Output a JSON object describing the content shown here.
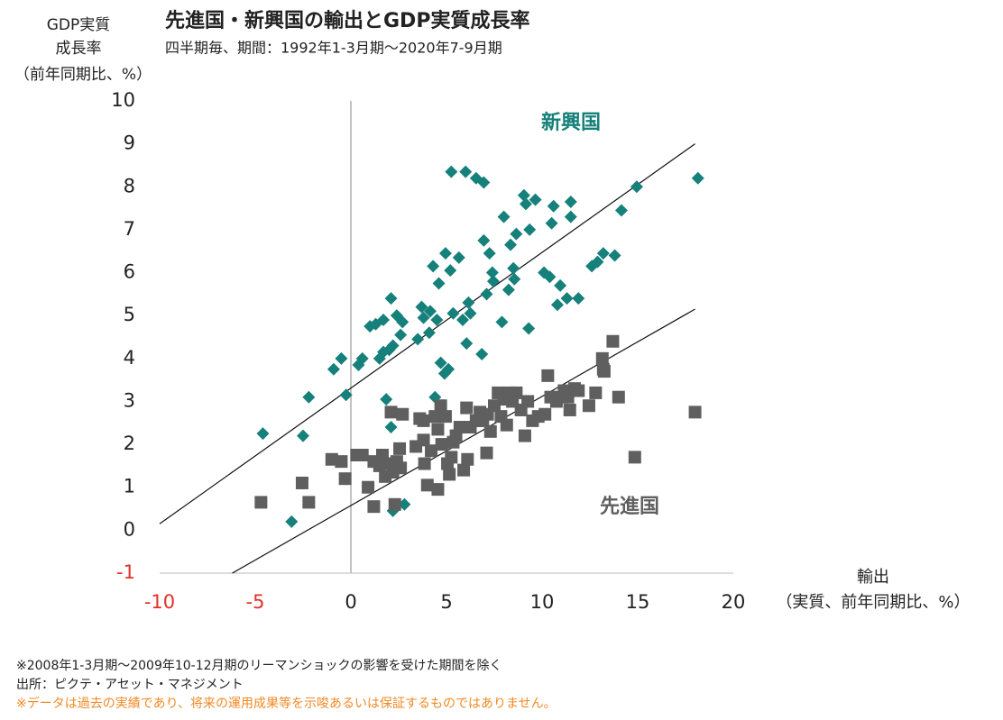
{
  "chart_data": {
    "type": "scatter",
    "title": "先進国・新興国の輸出とGDP実質成長率",
    "subtitle": "四半期毎、期間：1992年1-3月期～2020年7-9月期",
    "y_label": [
      "GDP実質",
      "成長率",
      "（前年同期比、%）"
    ],
    "x_label": [
      "輸出",
      "（実質、前年同期比、%）"
    ],
    "xlim": [
      -10,
      20
    ],
    "xticks": [
      -10,
      -5,
      0,
      5,
      10,
      15,
      20
    ],
    "ylim": [
      -1,
      10
    ],
    "yticks": [
      -1,
      0,
      1,
      2,
      3,
      4,
      5,
      6,
      7,
      8,
      9,
      10
    ],
    "negative_tick_color": "#e0312a",
    "grid": false,
    "series": [
      {
        "name": "新興国",
        "color": "#16807a",
        "marker": "diamond",
        "x": [
          -4.6,
          -3.1,
          -2.5,
          -2.2,
          -0.9,
          -0.5,
          -0.25,
          0.4,
          0.6,
          1.0,
          1.3,
          1.5,
          1.7,
          1.7,
          1.85,
          2.0,
          2.1,
          2.2,
          2.1,
          2.4,
          2.6,
          2.7,
          2.2,
          2.8,
          3.5,
          3.7,
          3.8,
          4.1,
          4.15,
          4.3,
          4.5,
          4.6,
          4.7,
          4.4,
          4.9,
          4.95,
          5.1,
          5.2,
          5.35,
          5.25,
          5.65,
          5.85,
          6.0,
          6.05,
          6.15,
          6.25,
          6.55,
          6.85,
          6.95,
          6.95,
          7.1,
          7.25,
          7.4,
          7.45,
          7.9,
          8.0,
          8.25,
          8.35,
          8.5,
          8.55,
          8.65,
          9.05,
          9.15,
          9.3,
          9.35,
          9.65,
          10.1,
          10.4,
          10.5,
          10.6,
          10.8,
          10.95,
          11.3,
          11.5,
          11.5,
          11.9,
          12.6,
          12.9,
          13.2,
          13.8,
          14.15,
          14.95,
          18.15
        ],
        "values": [
          2.25,
          0.2,
          2.2,
          3.1,
          3.75,
          4.0,
          3.15,
          3.85,
          4.0,
          4.75,
          4.8,
          4.0,
          4.9,
          4.15,
          3.05,
          4.2,
          5.4,
          4.3,
          2.4,
          5.0,
          4.55,
          4.85,
          0.45,
          0.6,
          4.45,
          5.2,
          4.95,
          4.6,
          5.1,
          6.15,
          4.9,
          5.75,
          3.9,
          3.1,
          3.65,
          6.45,
          3.75,
          6.05,
          5.05,
          8.35,
          6.35,
          4.9,
          8.35,
          4.35,
          5.3,
          5.05,
          8.2,
          4.1,
          8.1,
          6.75,
          5.5,
          6.45,
          6.0,
          5.8,
          4.85,
          7.3,
          5.6,
          6.65,
          6.1,
          5.85,
          6.9,
          7.8,
          7.6,
          4.7,
          7.0,
          7.7,
          6.0,
          5.9,
          7.15,
          7.55,
          5.25,
          5.7,
          5.4,
          7.65,
          7.3,
          5.4,
          6.15,
          6.25,
          6.45,
          6.4,
          7.45,
          8.0,
          8.2
        ]
      },
      {
        "name": "先進国",
        "color": "#5f5f5f",
        "marker": "square",
        "x": [
          -4.7,
          -2.55,
          -2.2,
          -1.0,
          -0.5,
          -0.3,
          0.3,
          0.6,
          0.9,
          1.2,
          1.2,
          1.5,
          1.65,
          1.8,
          2.0,
          2.1,
          2.2,
          2.3,
          2.4,
          2.55,
          2.7,
          2.6,
          3.4,
          3.6,
          3.8,
          3.8,
          3.85,
          4.0,
          4.2,
          4.4,
          4.55,
          4.55,
          4.7,
          4.75,
          4.95,
          5.05,
          5.15,
          5.25,
          5.35,
          5.5,
          5.7,
          5.9,
          6.05,
          6.1,
          6.25,
          6.55,
          6.75,
          6.9,
          7.1,
          7.15,
          7.3,
          7.5,
          7.7,
          7.85,
          8.0,
          8.15,
          8.3,
          8.45,
          8.65,
          8.9,
          9.1,
          9.25,
          9.5,
          9.8,
          10.15,
          10.3,
          10.45,
          10.75,
          11.05,
          11.15,
          11.35,
          11.45,
          11.7,
          11.9,
          12.45,
          12.8,
          13.15,
          13.2,
          13.25,
          13.7,
          14.0,
          14.85,
          18.0
        ],
        "values": [
          0.65,
          1.1,
          0.65,
          1.65,
          1.6,
          1.2,
          1.75,
          1.75,
          1.0,
          1.6,
          0.55,
          1.5,
          1.75,
          1.25,
          1.55,
          2.75,
          1.35,
          0.6,
          1.6,
          1.9,
          2.7,
          1.45,
          1.95,
          2.6,
          2.55,
          2.1,
          1.55,
          1.05,
          1.85,
          2.65,
          0.95,
          2.35,
          2.9,
          2.0,
          2.65,
          1.55,
          1.3,
          1.7,
          2.05,
          2.2,
          2.4,
          1.4,
          2.85,
          1.65,
          2.4,
          2.55,
          2.75,
          2.55,
          1.8,
          2.7,
          2.3,
          2.9,
          3.2,
          2.65,
          3.05,
          2.45,
          3.2,
          3.0,
          3.2,
          2.8,
          2.2,
          3.0,
          2.55,
          2.65,
          2.7,
          3.6,
          3.1,
          3.0,
          3.1,
          3.25,
          3.1,
          2.8,
          3.3,
          3.25,
          2.9,
          3.2,
          4.0,
          3.75,
          3.7,
          4.4,
          3.1,
          1.7,
          2.75
        ]
      }
    ],
    "trend_lines": [
      {
        "x": [
          -10,
          18
        ],
        "y": [
          0.15,
          9.0
        ]
      },
      {
        "x": [
          -6.2,
          18
        ],
        "y": [
          -1,
          5.15
        ]
      }
    ],
    "footnotes": [
      "※2008年1-3月期～2009年10-12月期のリーマンショックの影響を受けた期間を除く",
      "出所：ピクテ・アセット・マネジメント",
      "※データは過去の実績であり、将来の運用成果等を示唆あるいは保証するものではありません。"
    ],
    "footnote_warning_color": "#f08a24"
  }
}
